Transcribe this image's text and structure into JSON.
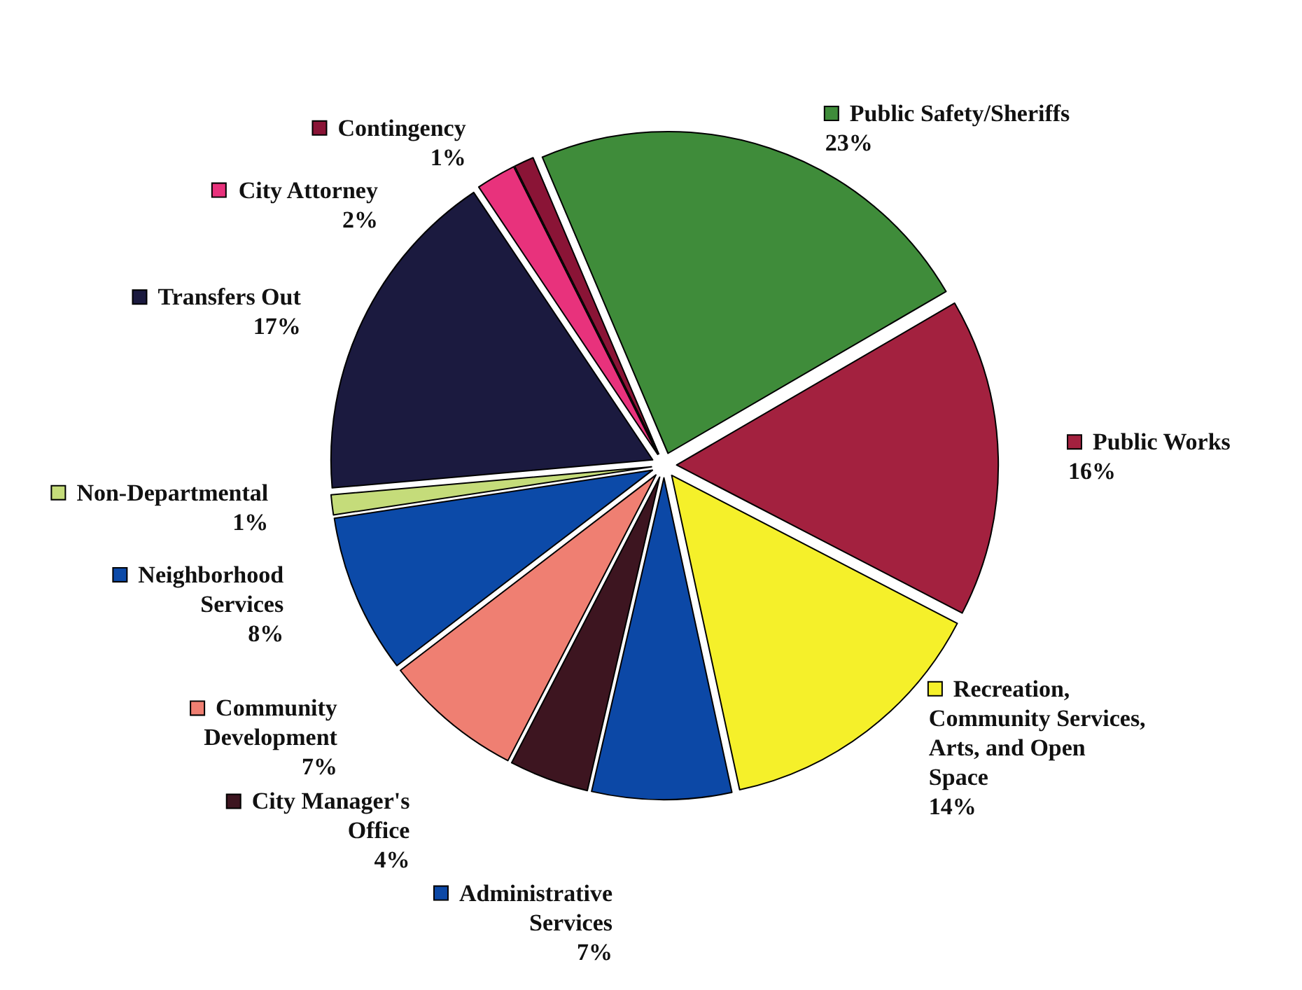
{
  "chart_data": {
    "type": "pie",
    "categories": [
      "Public Safety/Sheriffs",
      "Public Works",
      "Recreation,\nCommunity Services,\nArts, and Open\nSpace",
      "Administrative\nServices",
      "City Manager's\nOffice",
      "Community\nDevelopment",
      "Neighborhood\nServices",
      "Non-Departmental",
      "Transfers Out",
      "City Attorney",
      "Contingency"
    ],
    "values": [
      23,
      16,
      14,
      7,
      4,
      7,
      8,
      1,
      17,
      2,
      1
    ],
    "value_labels": [
      "23%",
      "16%",
      "14%",
      "7%",
      "4%",
      "7%",
      "8%",
      "1%",
      "17%",
      "2%",
      "1%"
    ],
    "legend": "right",
    "colors": [
      "#3f8c3a",
      "#a3213f",
      "#f5f02a",
      "#0c48a6",
      "#3d1520",
      "#ef7f72",
      "#0c4aa8",
      "#c5dc7a",
      "#1b1a3f",
      "#e8327c",
      "#8a1436"
    ]
  }
}
